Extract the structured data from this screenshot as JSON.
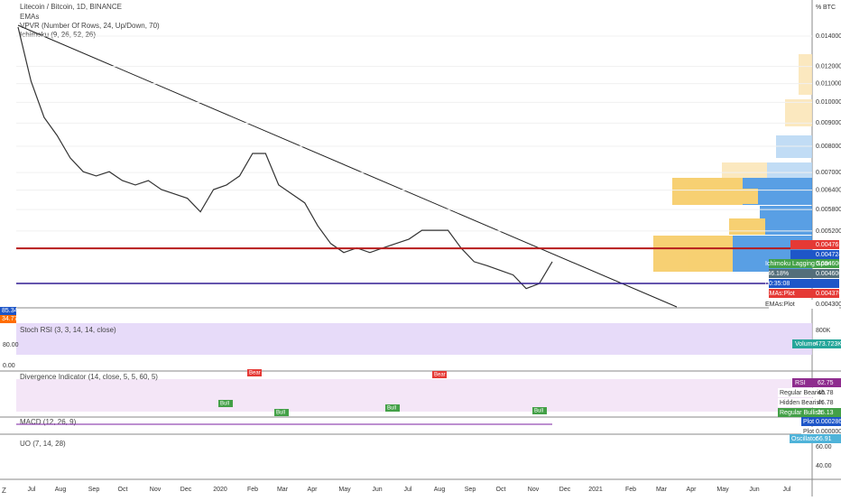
{
  "header": {
    "title": "Litecoin / Bitcoin, 1D, BINANCE",
    "currency": "BTC",
    "scale_mark": "%",
    "indicators": [
      "EMAs",
      "VPVR (Number Of Rows, 24, Up/Down, 70)",
      "Ichimoku (9, 26, 52, 26)"
    ]
  },
  "price_pane": {
    "log_scale": true,
    "ticks": [
      {
        "value": 0.014,
        "label": "0.014000"
      },
      {
        "value": 0.012,
        "label": "0.012000"
      },
      {
        "value": 0.011,
        "label": "0.011000"
      },
      {
        "value": 0.01,
        "label": "0.010000"
      },
      {
        "value": 0.009,
        "label": "0.009000"
      },
      {
        "value": 0.008,
        "label": "0.008000"
      },
      {
        "value": 0.007,
        "label": "0.007000"
      },
      {
        "value": 0.0064,
        "label": "0.006400"
      },
      {
        "value": 0.0058,
        "label": "0.005800"
      },
      {
        "value": 0.0052,
        "label": "0.005200"
      }
    ],
    "tags": [
      {
        "value": 0.004761,
        "label": "0.004761",
        "color": "#e53935"
      },
      {
        "value": 0.004724,
        "label": "0.004724",
        "color": "#1e56c8"
      },
      {
        "name": "Ichimoku Lagging Span",
        "value": 0.0046,
        "label": "0.004600",
        "color": "#43a047"
      },
      {
        "name": "-46.18%",
        "value": 0.0046,
        "label": "0.004600",
        "color": "#546e7a"
      },
      {
        "name": "00:35:08",
        "color": "#1e56c8"
      },
      {
        "name": "EMAs:Plot",
        "value": 0.004376,
        "label": "0.004376",
        "color": "#e53935"
      },
      {
        "name": "EMAs:Plot",
        "value": 0.0043,
        "label": "0.004300",
        "color": "#ffffff"
      }
    ],
    "price": [
      0.01466,
      0.01113,
      0.00926,
      0.00845,
      0.00754,
      0.00703,
      0.00688,
      0.00703,
      0.00672,
      0.00657,
      0.00672,
      0.00642,
      0.00628,
      0.00614,
      0.00573,
      0.00642,
      0.00657,
      0.00688,
      0.00771,
      0.00771,
      0.00657,
      0.00628,
      0.006,
      0.00534,
      0.00488,
      0.00466,
      0.00477,
      0.00466,
      0.00477,
      0.00488,
      0.00499,
      0.00522,
      0.00522,
      0.00522,
      0.00477,
      0.00445,
      0.00436,
      0.00426,
      0.00416,
      0.00388,
      0.00398,
      0.00445
    ]
  },
  "stoch_pane": {
    "label": "Stoch RSI (3, 3, 14, 14, close)",
    "k": "85.34",
    "d": "34.77",
    "ticks": [
      "80.00",
      "0.00"
    ],
    "volume_tick": "800K",
    "volume": "Volume",
    "volume_value": "473.723K"
  },
  "divergence_pane": {
    "label": "Divergence Indicator (14, close, 5, 5, 60, 5)",
    "tags": [
      {
        "name": "RSI",
        "value": "62.75"
      },
      {
        "name": "Regular Bearish",
        "value": "46.78"
      },
      {
        "name": "Hidden Bearish",
        "value": "46.78"
      },
      {
        "name": "Regular Bullish",
        "value": "35.13"
      }
    ],
    "marks": [
      "Bull",
      "Bear"
    ]
  },
  "macd_pane": {
    "label": "MACD (12, 26, 9)",
    "tags": [
      {
        "name": "Plot",
        "value": "0.000286"
      },
      {
        "name": "Plot",
        "value": "0.000000"
      }
    ]
  },
  "uo_pane": {
    "label": "UO (7, 14, 28)",
    "tags": [
      {
        "name": "Oscillator",
        "value": "66.91"
      }
    ],
    "ticks": [
      "60.00",
      "40.00"
    ]
  },
  "time_axis": [
    "Jul",
    "Aug",
    "Sep",
    "Oct",
    "Nov",
    "Dec",
    "2020",
    "Feb",
    "Mar",
    "Apr",
    "May",
    "Jun",
    "Jul",
    "Aug",
    "Sep",
    "Oct",
    "Nov",
    "Dec",
    "2021",
    "Feb",
    "Mar",
    "Apr",
    "May",
    "Jun",
    "Jul"
  ],
  "corner": "Z"
}
